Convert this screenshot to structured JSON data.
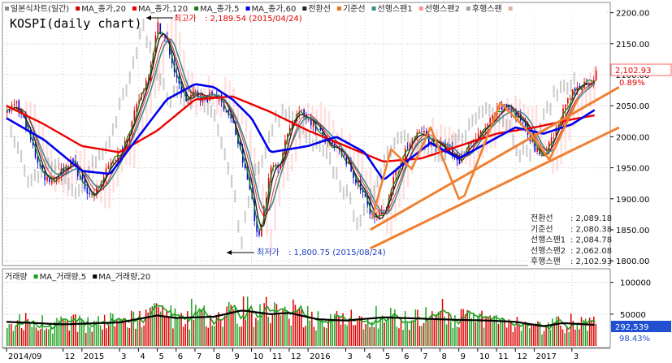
{
  "chart_title": "KOSPI(daily chart)",
  "colors": {
    "candle_up": "#e00000",
    "candle_down": "#0000e0",
    "ma20": "#cc0000",
    "ma5": "#108010",
    "ma120": "#ee0000",
    "ma60": "#0000ee",
    "conversion": "#222222",
    "base": "#e87020",
    "leading1": "#3a8a8a",
    "leading2": "#ff9090",
    "lagging": "#a0a0a0",
    "channel": "#f08030",
    "vol_up": "#e00000",
    "vol_down": "#20a020",
    "vol_ma5": "#20a020",
    "vol_ma20": "#000000"
  },
  "price_legend": [
    {
      "label": "일본식차트(일간)",
      "color": "#888888"
    },
    {
      "label": "MA_종가,20",
      "color": "#cc0000"
    },
    {
      "label": "MA_종가,120",
      "color": "#ee0000"
    },
    {
      "label": "MA_종가,5",
      "color": "#108010"
    },
    {
      "label": "MA_종가,60",
      "color": "#0000ee"
    },
    {
      "label": "전환선",
      "color": "#222222"
    },
    {
      "label": "기준선",
      "color": "#e87020"
    },
    {
      "label": "선행스팬1",
      "color": "#3a8a8a"
    },
    {
      "label": "선행스팬2",
      "color": "#ff9090"
    },
    {
      "label": "후행스팬",
      "color": "#a0a0a0"
    }
  ],
  "volume_legend": [
    {
      "label": "거래량",
      "color": "#888888"
    },
    {
      "label": "MA_거래량,5",
      "color": "#20a020"
    },
    {
      "label": "MA_거래량,20",
      "color": "#000000"
    }
  ],
  "annotations": {
    "high_label": "최고가",
    "high_value": ": 2,189.54 (2015/04/24)",
    "low_label": "최저가",
    "low_value": ": 1,800.75 (2015/08/24)"
  },
  "current_price_tag": "2,102.93",
  "current_pct_tag": "0.89%",
  "current_volume_tag": "292,539",
  "current_volume_pct": "98.43%",
  "indicator_values": [
    {
      "label": "전환선",
      "value": ": 2,089.18"
    },
    {
      "label": "기준선",
      "value": ": 2,080.38"
    },
    {
      "label": "선행스팬1",
      "value": ": 2,084.78"
    },
    {
      "label": "선행스팬2",
      "value": ": 2,062.08"
    },
    {
      "label": "후행스팬",
      "value": ": 2,102.93"
    }
  ],
  "chart_data": {
    "type": "line",
    "title": "KOSPI(daily chart)",
    "price_axis": {
      "ticks": [
        1800,
        1850,
        1900,
        1950,
        2000,
        2050,
        2100,
        2150,
        2200
      ],
      "tick_labels": [
        "1800.00",
        "1850.00",
        "1900.00",
        "1950.00",
        "2000.00",
        "2050.00",
        "2100.00",
        "2150.00",
        "2200.00"
      ],
      "ylim": [
        1795,
        2210
      ]
    },
    "volume_axis": {
      "ticks": [
        50000,
        100000
      ],
      "tick_labels": [
        "50000",
        "100000"
      ],
      "ylim": [
        0,
        115000
      ]
    },
    "x_axis": {
      "start_month": "2014-09",
      "end_month": "2017-03",
      "tick_labels": [
        "2014/09",
        "12",
        "2015",
        "3",
        "4",
        "5",
        "6",
        "7",
        "8",
        "9",
        "10",
        "11",
        "12",
        "2016",
        "3",
        "4",
        "5",
        "6",
        "7",
        "8",
        "9",
        "10",
        "11",
        "12",
        "2017",
        "3"
      ]
    },
    "close_path": [
      {
        "t": 0.0,
        "v": 2040
      },
      {
        "t": 0.5,
        "v": 2050
      },
      {
        "t": 1.0,
        "v": 2020
      },
      {
        "t": 1.5,
        "v": 1970
      },
      {
        "t": 2.0,
        "v": 1935
      },
      {
        "t": 2.5,
        "v": 1930
      },
      {
        "t": 3.0,
        "v": 1950
      },
      {
        "t": 3.5,
        "v": 1960
      },
      {
        "t": 4.0,
        "v": 1925
      },
      {
        "t": 4.5,
        "v": 1905
      },
      {
        "t": 5.0,
        "v": 1925
      },
      {
        "t": 5.5,
        "v": 1960
      },
      {
        "t": 6.0,
        "v": 1975
      },
      {
        "t": 6.5,
        "v": 2010
      },
      {
        "t": 7.0,
        "v": 2060
      },
      {
        "t": 7.5,
        "v": 2100
      },
      {
        "t": 8.0,
        "v": 2180
      },
      {
        "t": 8.5,
        "v": 2150
      },
      {
        "t": 9.0,
        "v": 2090
      },
      {
        "t": 9.5,
        "v": 2060
      },
      {
        "t": 10.0,
        "v": 2070
      },
      {
        "t": 10.5,
        "v": 2060
      },
      {
        "t": 11.0,
        "v": 2070
      },
      {
        "t": 11.5,
        "v": 2050
      },
      {
        "t": 12.0,
        "v": 2020
      },
      {
        "t": 12.5,
        "v": 1960
      },
      {
        "t": 13.0,
        "v": 1900
      },
      {
        "t": 13.3,
        "v": 1830
      },
      {
        "t": 13.7,
        "v": 1900
      },
      {
        "t": 14.0,
        "v": 1950
      },
      {
        "t": 14.5,
        "v": 1960
      },
      {
        "t": 15.0,
        "v": 2020
      },
      {
        "t": 15.5,
        "v": 2040
      },
      {
        "t": 16.0,
        "v": 2030
      },
      {
        "t": 16.5,
        "v": 2010
      },
      {
        "t": 17.0,
        "v": 1990
      },
      {
        "t": 17.5,
        "v": 1980
      },
      {
        "t": 18.0,
        "v": 1960
      },
      {
        "t": 18.5,
        "v": 1930
      },
      {
        "t": 19.0,
        "v": 1900
      },
      {
        "t": 19.5,
        "v": 1865
      },
      {
        "t": 20.0,
        "v": 1880
      },
      {
        "t": 20.5,
        "v": 1930
      },
      {
        "t": 21.0,
        "v": 1970
      },
      {
        "t": 21.5,
        "v": 1995
      },
      {
        "t": 22.0,
        "v": 2010
      },
      {
        "t": 22.5,
        "v": 1990
      },
      {
        "t": 23.0,
        "v": 1985
      },
      {
        "t": 23.5,
        "v": 1975
      },
      {
        "t": 24.0,
        "v": 1960
      },
      {
        "t": 24.5,
        "v": 1990
      },
      {
        "t": 25.0,
        "v": 2000
      },
      {
        "t": 25.5,
        "v": 2020
      },
      {
        "t": 26.0,
        "v": 2040
      },
      {
        "t": 26.5,
        "v": 2050
      },
      {
        "t": 27.0,
        "v": 2035
      },
      {
        "t": 27.5,
        "v": 2020
      },
      {
        "t": 28.0,
        "v": 1980
      },
      {
        "t": 28.5,
        "v": 1970
      },
      {
        "t": 29.0,
        "v": 2000
      },
      {
        "t": 29.5,
        "v": 2040
      },
      {
        "t": 30.0,
        "v": 2070
      },
      {
        "t": 30.5,
        "v": 2085
      },
      {
        "t": 31.0,
        "v": 2090
      },
      {
        "t": 31.3,
        "v": 2103
      }
    ],
    "series": [
      {
        "name": "MA_종가,120",
        "values": [
          {
            "t": 0,
            "v": 2050
          },
          {
            "t": 2,
            "v": 2020
          },
          {
            "t": 4,
            "v": 1985
          },
          {
            "t": 6,
            "v": 1975
          },
          {
            "t": 8,
            "v": 2010
          },
          {
            "t": 10,
            "v": 2060
          },
          {
            "t": 12,
            "v": 2065
          },
          {
            "t": 14,
            "v": 2040
          },
          {
            "t": 16,
            "v": 2010
          },
          {
            "t": 18,
            "v": 1985
          },
          {
            "t": 20,
            "v": 1960
          },
          {
            "t": 22,
            "v": 1965
          },
          {
            "t": 24,
            "v": 1985
          },
          {
            "t": 26,
            "v": 2005
          },
          {
            "t": 28,
            "v": 2015
          },
          {
            "t": 30,
            "v": 2028
          },
          {
            "t": 31.3,
            "v": 2035
          }
        ]
      },
      {
        "name": "MA_종가,60",
        "values": [
          {
            "t": 0,
            "v": 2030
          },
          {
            "t": 2,
            "v": 1995
          },
          {
            "t": 4,
            "v": 1945
          },
          {
            "t": 5.5,
            "v": 1940
          },
          {
            "t": 7,
            "v": 2000
          },
          {
            "t": 8.5,
            "v": 2060
          },
          {
            "t": 10,
            "v": 2085
          },
          {
            "t": 11,
            "v": 2080
          },
          {
            "t": 12,
            "v": 2060
          },
          {
            "t": 13,
            "v": 2030
          },
          {
            "t": 14,
            "v": 1975
          },
          {
            "t": 15,
            "v": 1980
          },
          {
            "t": 16,
            "v": 1985
          },
          {
            "t": 17.5,
            "v": 2000
          },
          {
            "t": 19,
            "v": 1975
          },
          {
            "t": 20,
            "v": 1930
          },
          {
            "t": 21,
            "v": 1955
          },
          {
            "t": 22.5,
            "v": 1990
          },
          {
            "t": 24,
            "v": 1965
          },
          {
            "t": 25.5,
            "v": 1990
          },
          {
            "t": 27,
            "v": 2015
          },
          {
            "t": 28.5,
            "v": 2005
          },
          {
            "t": 30,
            "v": 2020
          },
          {
            "t": 31.3,
            "v": 2045
          }
        ]
      }
    ],
    "channel_lines": [
      {
        "from": {
          "t": 19.3,
          "v": 1850
        },
        "to": {
          "t": 32.5,
          "v": 2080
        }
      },
      {
        "from": {
          "t": 19.3,
          "v": 1820
        },
        "to": {
          "t": 32.5,
          "v": 2015
        }
      }
    ],
    "wave_lines": [
      {
        "points": [
          {
            "t": 19.4,
            "v": 1868
          },
          {
            "t": 20.4,
            "v": 1980
          },
          {
            "t": 21.5,
            "v": 1948
          },
          {
            "t": 22.5,
            "v": 2015
          },
          {
            "t": 24.0,
            "v": 1900
          },
          {
            "t": 24.3,
            "v": 1905
          },
          {
            "t": 26.2,
            "v": 2055
          },
          {
            "t": 27.8,
            "v": 2005
          },
          {
            "t": 28.8,
            "v": 1963
          },
          {
            "t": 30.3,
            "v": 2060
          }
        ]
      }
    ],
    "volume": {
      "ma20_path": [
        {
          "t": 0,
          "v": 38000
        },
        {
          "t": 3,
          "v": 34000
        },
        {
          "t": 6,
          "v": 37000
        },
        {
          "t": 8,
          "v": 48000
        },
        {
          "t": 9,
          "v": 44000
        },
        {
          "t": 11,
          "v": 46000
        },
        {
          "t": 12.5,
          "v": 56000
        },
        {
          "t": 14,
          "v": 50000
        },
        {
          "t": 15,
          "v": 52000
        },
        {
          "t": 16.5,
          "v": 42000
        },
        {
          "t": 18,
          "v": 40000
        },
        {
          "t": 20,
          "v": 45000
        },
        {
          "t": 22,
          "v": 43000
        },
        {
          "t": 24,
          "v": 41000
        },
        {
          "t": 25.5,
          "v": 40000
        },
        {
          "t": 27,
          "v": 38000
        },
        {
          "t": 28.5,
          "v": 31000
        },
        {
          "t": 29.5,
          "v": 36000
        },
        {
          "t": 31.3,
          "v": 33000
        }
      ]
    }
  }
}
